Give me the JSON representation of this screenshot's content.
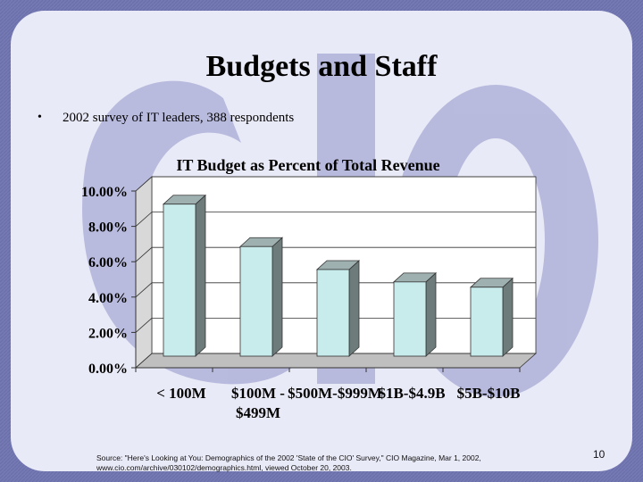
{
  "slide": {
    "title": "Budgets and Staff",
    "bullet_marker": "•",
    "bullet": "2002 survey of IT leaders, 388 respondents",
    "watermark_text": "CIO",
    "source_line1": "Source: \"Here's Looking at You: Demographics of the 2002 'State of the CIO' Survey,\" CIO Magazine, Mar 1, 2002,",
    "source_line2": "www.cio.com/archive/030102/demographics.html, viewed October 20, 2003.",
    "page_number": "10"
  },
  "colors": {
    "background": "#ffffff",
    "frame": "#6f73ad",
    "panel": "#e9eaf7",
    "watermark": "#aeb0d6",
    "bar_front": "#c8ecec",
    "bar_side": "#6d7b7b",
    "bar_top": "#9fb0b0",
    "wall": "#ffffff"
  },
  "chart_data": {
    "type": "bar",
    "title": "IT Budget as Percent of Total Revenue",
    "categories": [
      [
        "< 100M"
      ],
      [
        "$100M -",
        "$499M"
      ],
      [
        "$500M-$999M"
      ],
      [
        "$1B-$4.9B"
      ],
      [
        "$5B-$10B"
      ]
    ],
    "values": [
      8.6,
      6.2,
      4.9,
      4.2,
      3.9
    ],
    "ylim": [
      0,
      10
    ],
    "yticks": [
      "0.00%",
      "2.00%",
      "4.00%",
      "6.00%",
      "8.00%",
      "10.00%"
    ],
    "ytick_values": [
      0,
      2,
      4,
      6,
      8,
      10
    ],
    "grid": true,
    "three_d": true,
    "xlabel": "",
    "ylabel": ""
  }
}
